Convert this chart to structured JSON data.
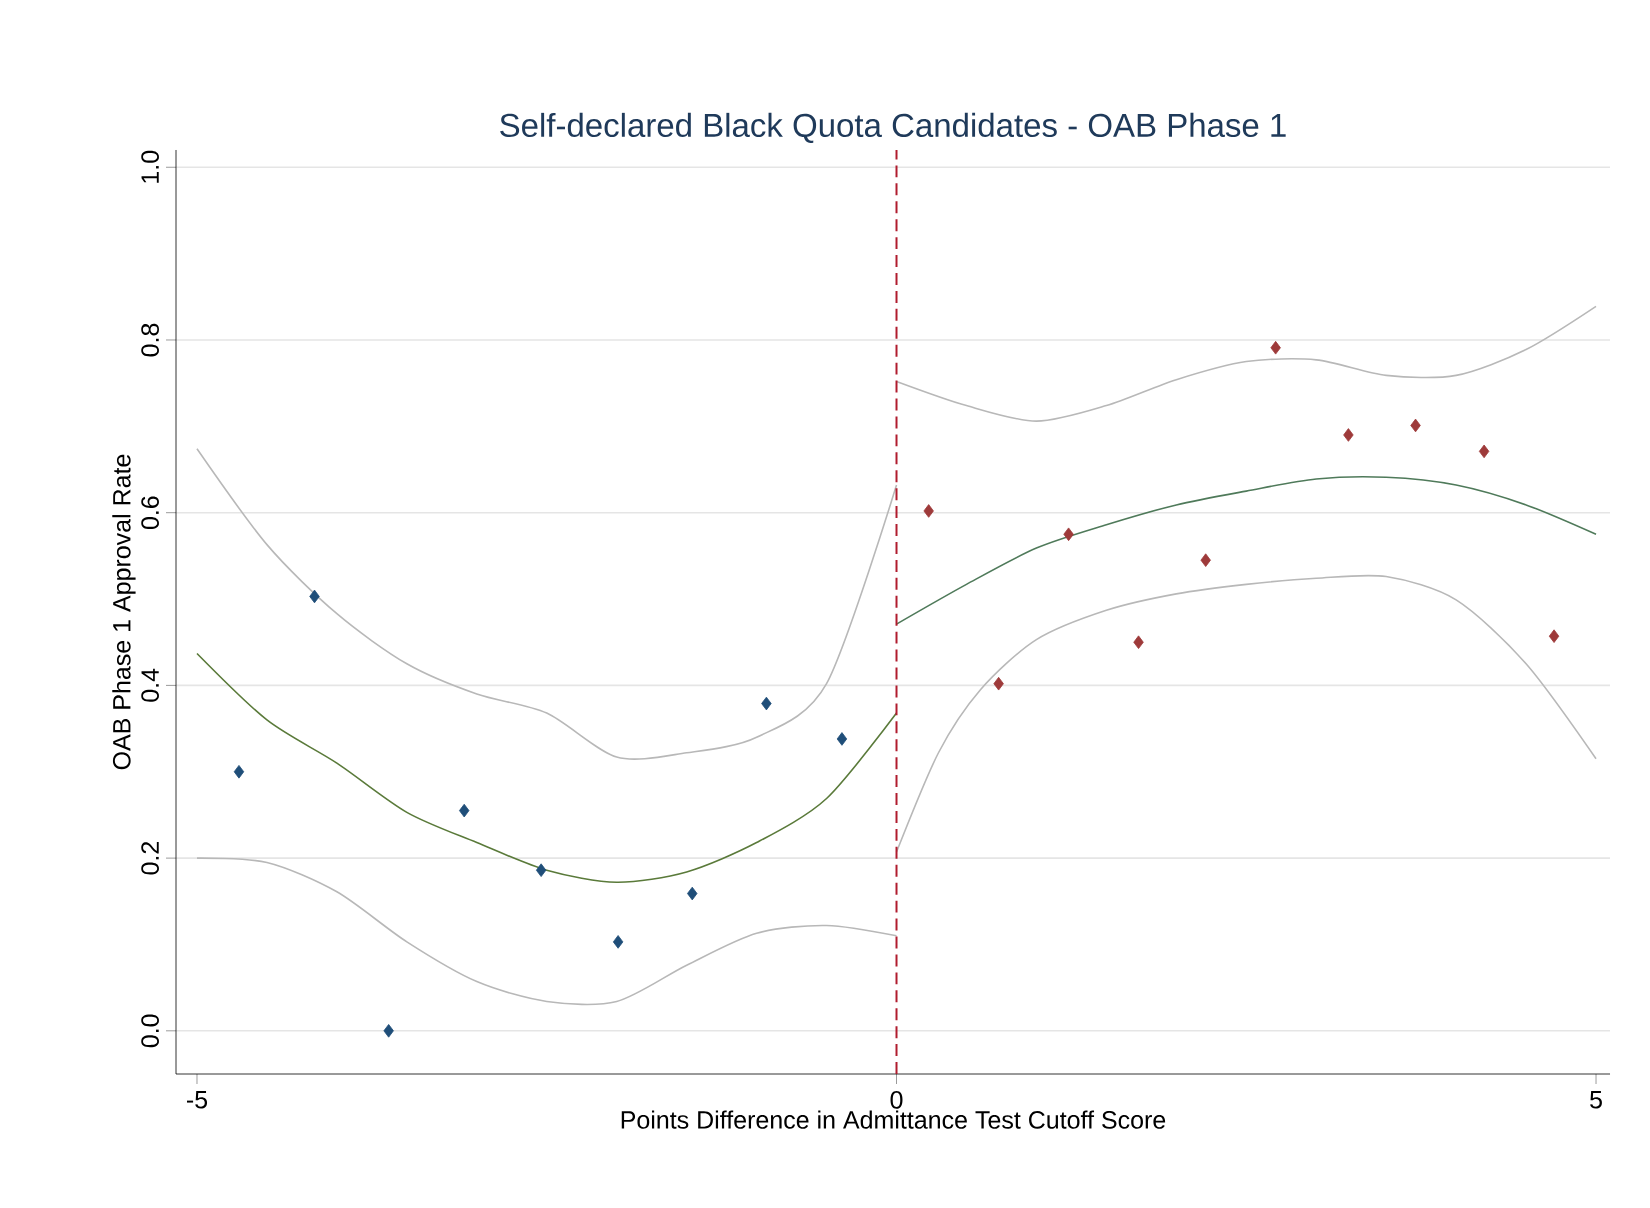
{
  "chart_data": {
    "type": "scatter",
    "title": "Self-declared Black Quota Candidates - OAB Phase 1",
    "xlabel": "Points Difference in Admittance Test Cutoff Score",
    "ylabel": "OAB Phase 1 Approval Rate",
    "xlim": [
      -5.15,
      5.1
    ],
    "ylim": [
      -0.05,
      1.02
    ],
    "xticks": [
      -5,
      0,
      5
    ],
    "yticks": [
      {
        "value": 0,
        "label": "0.0"
      },
      {
        "value": 0.2,
        "label": "0.2"
      },
      {
        "value": 0.4,
        "label": "0.4"
      },
      {
        "value": 0.6,
        "label": "0.6"
      },
      {
        "value": 0.8,
        "label": "0.8"
      },
      {
        "value": 1,
        "label": "1.0"
      }
    ],
    "grid": "y",
    "ref_lines": [
      {
        "axis": "x",
        "value": 0,
        "color": "#b01c2e",
        "line_style": "dashed"
      }
    ],
    "series": [
      {
        "type": "line",
        "color": "#b8b8b8",
        "x": [
          -5,
          -4.5,
          -4,
          -3.5,
          -3,
          -2.5,
          -2,
          -1.5,
          -1,
          -0.5,
          0
        ],
        "values": [
          0.674,
          0.563,
          0.483,
          0.425,
          0.39,
          0.368,
          0.317,
          0.322,
          0.34,
          0.402,
          0.632
        ]
      },
      {
        "type": "line",
        "color": "#b8b8b8",
        "x": [
          -5,
          -4.5,
          -4,
          -3.5,
          -3,
          -2.5,
          -2,
          -1.5,
          -1,
          -0.5,
          0
        ],
        "values": [
          0.2,
          0.195,
          0.161,
          0.103,
          0.057,
          0.034,
          0.034,
          0.076,
          0.113,
          0.122,
          0.11
        ]
      },
      {
        "type": "line",
        "color": "#5a7a3a",
        "x": [
          -5,
          -4.5,
          -4,
          -3.5,
          -3,
          -2.5,
          -2,
          -1.5,
          -1,
          -0.5,
          0
        ],
        "values": [
          0.437,
          0.36,
          0.31,
          0.253,
          0.218,
          0.186,
          0.172,
          0.184,
          0.218,
          0.269,
          0.368
        ]
      },
      {
        "type": "line",
        "color": "#b8b8b8",
        "x": [
          0,
          0.5,
          1,
          1.5,
          2,
          2.5,
          3,
          3.5,
          4,
          4.5,
          5
        ],
        "values": [
          0.752,
          0.724,
          0.706,
          0.724,
          0.754,
          0.775,
          0.777,
          0.759,
          0.759,
          0.789,
          0.839
        ]
      },
      {
        "type": "line",
        "color": "#b8b8b8",
        "x": [
          0,
          0.3,
          0.6,
          1,
          1.5,
          2,
          2.5,
          3,
          3.5,
          4,
          4.5,
          5
        ],
        "values": [
          0.207,
          0.322,
          0.395,
          0.453,
          0.487,
          0.506,
          0.517,
          0.524,
          0.526,
          0.499,
          0.425,
          0.315
        ]
      },
      {
        "type": "line",
        "color": "#4f7a5a",
        "x": [
          0,
          0.5,
          1,
          1.5,
          2,
          2.5,
          3,
          3.5,
          4,
          4.5,
          5
        ],
        "values": [
          0.471,
          0.517,
          0.559,
          0.586,
          0.609,
          0.625,
          0.639,
          0.641,
          0.632,
          0.609,
          0.575
        ]
      },
      {
        "marker": "diamond",
        "color": "#1f4e79",
        "x": [
          -4.7,
          -4.16,
          -3.63,
          -3.09,
          -2.54,
          -1.99,
          -1.46,
          -0.93,
          -0.39
        ],
        "values": [
          0.3,
          0.503,
          0.0,
          0.255,
          0.186,
          0.103,
          0.159,
          0.379,
          0.338
        ]
      },
      {
        "marker": "diamond",
        "color": "#9e3a3a",
        "x": [
          0.23,
          0.73,
          1.23,
          1.73,
          2.21,
          2.71,
          3.23,
          3.71,
          4.2,
          4.7
        ],
        "values": [
          0.602,
          0.402,
          0.575,
          0.45,
          0.545,
          0.791,
          0.69,
          0.701,
          0.671,
          0.457
        ]
      }
    ]
  }
}
